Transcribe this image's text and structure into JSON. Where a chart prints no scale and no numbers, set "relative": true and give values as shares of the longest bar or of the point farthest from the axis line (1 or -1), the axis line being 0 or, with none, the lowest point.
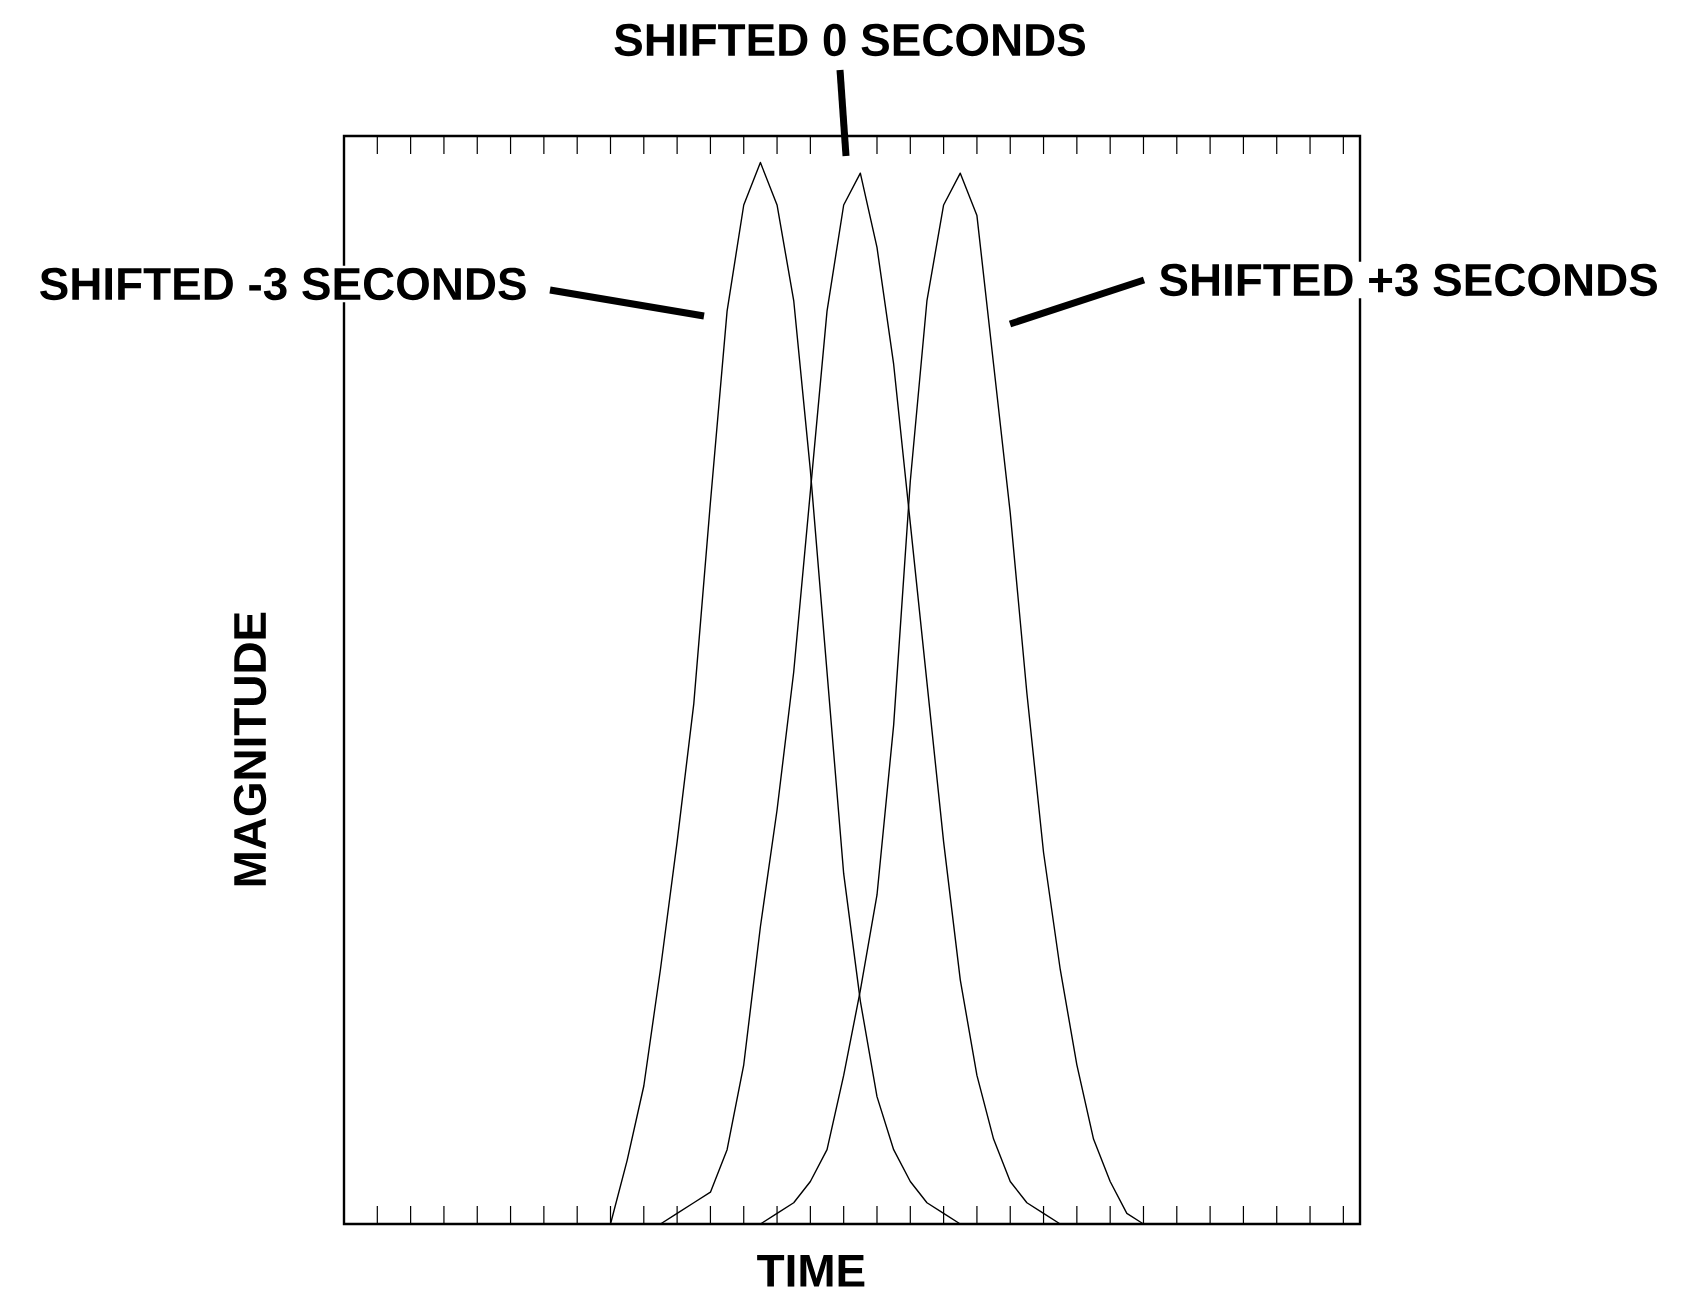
{
  "chart_data": {
    "type": "line",
    "relative": true,
    "xlabel": "TIME",
    "ylabel": "MAGNITUDE",
    "marker": "none",
    "line_style": "solid",
    "categories": [
      null,
      null,
      null,
      null,
      null,
      null,
      null,
      null,
      null,
      null,
      null,
      null,
      null,
      null,
      null,
      null,
      null,
      null,
      null,
      null,
      null,
      null,
      null,
      null,
      null,
      null,
      null,
      null,
      null,
      null,
      null,
      null,
      null,
      null,
      null,
      null,
      null,
      null,
      null,
      null,
      null,
      null,
      null,
      null,
      null,
      null,
      null,
      null,
      null,
      null,
      null,
      null,
      null,
      null,
      null,
      null,
      null,
      null,
      null,
      null,
      null,
      null
    ],
    "series": [
      {
        "name": "SHIFTED -3 SECONDS",
        "color": "#000000",
        "values": [
          null,
          null,
          null,
          null,
          null,
          null,
          null,
          null,
          null,
          null,
          null,
          null,
          null,
          null,
          null,
          null,
          0,
          0.06,
          0.13,
          0.24,
          0.36,
          0.49,
          0.68,
          0.86,
          0.96,
          1,
          0.96,
          0.87,
          0.71,
          0.52,
          0.33,
          0.21,
          0.12,
          0.07,
          0.04,
          0.02,
          0.01,
          0,
          null,
          null,
          null,
          null,
          null,
          null,
          null,
          null,
          null,
          null,
          null,
          null,
          null,
          null,
          null,
          null,
          null,
          null,
          null,
          null,
          null,
          null,
          null,
          null
        ]
      },
      {
        "name": "SHIFTED 0 SECONDS",
        "color": "#000000",
        "values": [
          null,
          null,
          null,
          null,
          null,
          null,
          null,
          null,
          null,
          null,
          null,
          null,
          null,
          null,
          null,
          null,
          null,
          null,
          null,
          0,
          0.01,
          0.02,
          0.03,
          0.07,
          0.15,
          0.28,
          0.39,
          0.52,
          0.69,
          0.86,
          0.96,
          0.99,
          0.92,
          0.81,
          0.66,
          0.51,
          0.36,
          0.23,
          0.14,
          0.08,
          0.04,
          0.02,
          0.01,
          0,
          null,
          null,
          null,
          null,
          null,
          null,
          null,
          null,
          null,
          null,
          null,
          null,
          null,
          null,
          null,
          null,
          null,
          null
        ]
      },
      {
        "name": "SHIFTED +3 SECONDS",
        "color": "#000000",
        "values": [
          null,
          null,
          null,
          null,
          null,
          null,
          null,
          null,
          null,
          null,
          null,
          null,
          null,
          null,
          null,
          null,
          null,
          null,
          null,
          null,
          null,
          null,
          null,
          null,
          null,
          0,
          0.01,
          0.02,
          0.04,
          0.07,
          0.14,
          0.22,
          0.31,
          0.47,
          0.7,
          0.87,
          0.96,
          0.99,
          0.95,
          0.81,
          0.67,
          0.5,
          0.35,
          0.24,
          0.15,
          0.08,
          0.04,
          0.01,
          0,
          null,
          null,
          null,
          null,
          null,
          null,
          null,
          null,
          null,
          null,
          null,
          null,
          null
        ]
      }
    ]
  }
}
